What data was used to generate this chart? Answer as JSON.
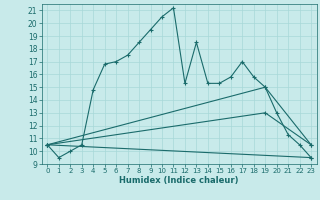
{
  "xlabel": "Humidex (Indice chaleur)",
  "bg_color": "#c8eaea",
  "grid_color": "#a8d8d8",
  "line_color": "#1a6b6b",
  "xlim": [
    -0.5,
    23.5
  ],
  "ylim": [
    9,
    21.5
  ],
  "yticks": [
    9,
    10,
    11,
    12,
    13,
    14,
    15,
    16,
    17,
    18,
    19,
    20,
    21
  ],
  "xticks": [
    0,
    1,
    2,
    3,
    4,
    5,
    6,
    7,
    8,
    9,
    10,
    11,
    12,
    13,
    14,
    15,
    16,
    17,
    18,
    19,
    20,
    21,
    22,
    23
  ],
  "series": [
    {
      "x": [
        0,
        1,
        2,
        3,
        4,
        5,
        6,
        7,
        8,
        9,
        10,
        11,
        12,
        13,
        14,
        15,
        16,
        17,
        18,
        19,
        20,
        21,
        22,
        23
      ],
      "y": [
        10.5,
        9.5,
        10.0,
        10.5,
        14.8,
        16.8,
        17.0,
        17.5,
        18.5,
        19.5,
        20.5,
        21.2,
        15.3,
        18.5,
        15.3,
        15.3,
        15.8,
        17.0,
        15.8,
        15.0,
        13.0,
        11.3,
        10.5,
        9.5
      ]
    },
    {
      "x": [
        0,
        23
      ],
      "y": [
        10.5,
        9.5
      ]
    },
    {
      "x": [
        0,
        19,
        23
      ],
      "y": [
        10.5,
        15.0,
        10.5
      ]
    },
    {
      "x": [
        0,
        19,
        23
      ],
      "y": [
        10.5,
        13.0,
        10.5
      ]
    }
  ]
}
